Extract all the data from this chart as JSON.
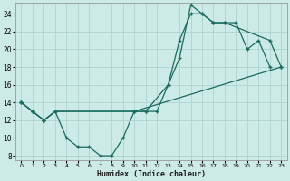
{
  "xlabel": "Humidex (Indice chaleur)",
  "bg_color": "#cceae6",
  "grid_color": "#aed4cf",
  "line_color": "#1a6b5e",
  "xlim": [
    -0.5,
    23.5
  ],
  "ylim": [
    7.5,
    25.2
  ],
  "xticks": [
    0,
    1,
    2,
    3,
    4,
    5,
    6,
    7,
    8,
    9,
    10,
    11,
    12,
    13,
    14,
    15,
    16,
    17,
    18,
    19,
    20,
    21,
    22,
    23
  ],
  "yticks": [
    8,
    10,
    12,
    14,
    16,
    18,
    20,
    22,
    24
  ],
  "line1_x": [
    0,
    1,
    2,
    3,
    4,
    5,
    6,
    7,
    8,
    9,
    10,
    11,
    12,
    13,
    14,
    15,
    16,
    17,
    18,
    19,
    20,
    21,
    22
  ],
  "line1_y": [
    14,
    13,
    12,
    13,
    10,
    9,
    9,
    8,
    8,
    10,
    13,
    13,
    13,
    16,
    19,
    25,
    24,
    23,
    23,
    23,
    20,
    21,
    18
  ],
  "line2_x": [
    0,
    1,
    2,
    3,
    10,
    11,
    13,
    14,
    15,
    16,
    17,
    18,
    22,
    23
  ],
  "line2_y": [
    14,
    13,
    12,
    13,
    13,
    13,
    16,
    21,
    24,
    24,
    23,
    23,
    21,
    18
  ],
  "line3_x": [
    0,
    1,
    2,
    3,
    10,
    23
  ],
  "line3_y": [
    14,
    13,
    12,
    13,
    13,
    18
  ]
}
